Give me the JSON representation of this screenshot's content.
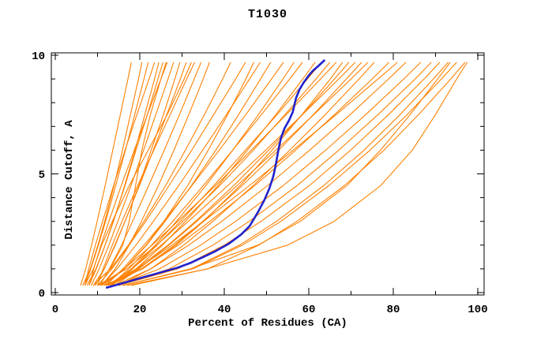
{
  "chart_data": {
    "type": "line",
    "title": "T1030",
    "xlabel": "Percent of Residues (CA)",
    "ylabel": "Distance Cutoff, A",
    "xlim": [
      0,
      100
    ],
    "ylim": [
      0,
      10
    ],
    "x_major_ticks": [
      0,
      20,
      40,
      60,
      80,
      100
    ],
    "x_minor_step": 10,
    "y_major_ticks": [
      0,
      5,
      10
    ],
    "y_minor_step": 1,
    "grid": false,
    "legend": "none",
    "frame": "full-box-inward-ticks",
    "colors": {
      "ensemble": "#FF8000",
      "highlight": "#2222CC",
      "frame": "#000000",
      "background": "#FFFFFF"
    },
    "highlight_series": {
      "name": "highlighted-model-curve",
      "points": [
        [
          12,
          0.2
        ],
        [
          14,
          0.3
        ],
        [
          17,
          0.45
        ],
        [
          20,
          0.6
        ],
        [
          23,
          0.75
        ],
        [
          26,
          0.9
        ],
        [
          29,
          1.05
        ],
        [
          32,
          1.25
        ],
        [
          35,
          1.5
        ],
        [
          38,
          1.75
        ],
        [
          41,
          2.05
        ],
        [
          44,
          2.45
        ],
        [
          46,
          2.8
        ],
        [
          48,
          3.4
        ],
        [
          49.5,
          3.9
        ],
        [
          50.7,
          4.4
        ],
        [
          51.6,
          4.9
        ],
        [
          52.2,
          5.4
        ],
        [
          52.8,
          6.0
        ],
        [
          53.4,
          6.5
        ],
        [
          54.2,
          6.9
        ],
        [
          55.3,
          7.25
        ],
        [
          56.2,
          7.6
        ],
        [
          57,
          8.2
        ],
        [
          57.8,
          8.55
        ],
        [
          58.8,
          8.85
        ],
        [
          60,
          9.15
        ],
        [
          61,
          9.35
        ],
        [
          62.3,
          9.55
        ],
        [
          63.8,
          9.8
        ]
      ]
    },
    "ensemble": {
      "name": "model-curves",
      "y_stops": [
        0.3,
        1,
        2,
        3,
        4.5,
        6,
        7.5,
        9,
        9.7
      ],
      "series": [
        {
          "x": [
            6,
            7.2,
            8.6,
            9.9,
            11.8,
            13.6,
            15.4,
            17.2,
            18
          ]
        },
        {
          "x": [
            6.5,
            8.3,
            10.1,
            11.7,
            13.9,
            15.9,
            17.8,
            19.7,
            20.5
          ]
        },
        {
          "x": [
            7,
            8.4,
            10.2,
            11.9,
            14.3,
            16.6,
            18.8,
            21,
            22
          ]
        },
        {
          "x": [
            7,
            7.9,
            9.5,
            11.2,
            13.8,
            16.5,
            19.3,
            22.2,
            23.5
          ]
        },
        {
          "x": [
            7.5,
            9.6,
            11.8,
            13.8,
            16.4,
            18.9,
            21.2,
            23.5,
            24.5
          ]
        },
        {
          "x": [
            8,
            9.7,
            11.8,
            13.7,
            16.5,
            19.1,
            21.8,
            24.3,
            25.5
          ]
        },
        {
          "x": [
            8,
            9.1,
            10.8,
            12.7,
            15.6,
            18.7,
            21.8,
            25,
            26.5
          ]
        },
        {
          "x": [
            9,
            13,
            16,
            17.5,
            19,
            20.5,
            22.5,
            25,
            26.2
          ]
        },
        {
          "x": [
            8.5,
            10.4,
            12.7,
            14.8,
            17.9,
            20.9,
            23.8,
            26.7,
            28
          ]
        },
        {
          "x": [
            9,
            11.6,
            14.2,
            16.5,
            19.8,
            22.7,
            25.6,
            28.3,
            29.5
          ]
        },
        {
          "x": [
            9.5,
            11.6,
            14.1,
            16.5,
            19.9,
            23.2,
            26.4,
            29.6,
            31
          ]
        },
        {
          "x": [
            7,
            9,
            11,
            13.5,
            17.5,
            22,
            26.5,
            30.5,
            32.2
          ]
        },
        {
          "x": [
            10,
            11.3,
            13.5,
            15.8,
            19.5,
            23.3,
            27.2,
            31.1,
            33
          ]
        },
        {
          "x": [
            10.5,
            12.8,
            15.7,
            18.3,
            22.1,
            25.8,
            29.4,
            32.9,
            34.5
          ]
        },
        {
          "x": [
            11,
            14.2,
            17.5,
            20.4,
            24.4,
            28.1,
            31.6,
            35,
            36.5
          ]
        },
        {
          "x": [
            9,
            13.1,
            17.3,
            21,
            26.1,
            30.8,
            35.3,
            39.6,
            41.5
          ]
        },
        {
          "x": [
            10,
            13.4,
            17.5,
            21.4,
            26.9,
            32.3,
            37.5,
            42.7,
            45
          ]
        },
        {
          "x": [
            10.5,
            16.4,
            21.5,
            25.7,
            31.3,
            36.2,
            40.8,
            45.1,
            47
          ]
        },
        {
          "x": [
            11,
            14.6,
            19.1,
            23.2,
            29.2,
            34.9,
            40.5,
            46,
            48.5
          ]
        },
        {
          "x": [
            11.5,
            16.4,
            21.6,
            26,
            32.2,
            38,
            43.4,
            48.6,
            51
          ]
        },
        {
          "x": [
            12,
            16,
            21,
            25.7,
            32.3,
            38.8,
            45.1,
            51.2,
            54
          ]
        },
        {
          "x": [
            12.5,
            18,
            23.7,
            28.7,
            35.6,
            42,
            48.1,
            53.9,
            56.5
          ]
        },
        {
          "x": [
            13,
            17.4,
            22.8,
            27.8,
            35,
            42,
            48.8,
            55.5,
            58.5
          ]
        },
        {
          "x": [
            13,
            19.1,
            25.4,
            30.8,
            38.5,
            45.5,
            52.2,
            58.6,
            61.5
          ]
        },
        {
          "x": [
            13.5,
            18.3,
            24.1,
            29.6,
            37.5,
            45,
            52.5,
            59.7,
            63
          ]
        },
        {
          "x": [
            10,
            16.9,
            24,
            30.2,
            38.9,
            46.9,
            54.4,
            61.7,
            65
          ]
        },
        {
          "x": [
            11,
            16.3,
            22.9,
            29,
            37.9,
            46.4,
            54.7,
            62.8,
            66.5
          ]
        },
        {
          "x": [
            11.5,
            20.7,
            28.6,
            35.1,
            43.7,
            51.3,
            58.4,
            65.1,
            68
          ]
        },
        {
          "x": [
            12,
            19.2,
            26.7,
            33.2,
            42.2,
            50.5,
            58.5,
            66.1,
            69.5
          ]
        },
        {
          "x": [
            12.5,
            18.1,
            25.1,
            31.5,
            40.8,
            49.8,
            58.5,
            67.1,
            71
          ]
        },
        {
          "x": [
            13,
            20.4,
            28.2,
            34.9,
            44.2,
            52.9,
            61.1,
            68.9,
            72.5
          ]
        },
        {
          "x": [
            14,
            19.8,
            26.9,
            33.5,
            43,
            52.2,
            61.2,
            70,
            74
          ]
        },
        {
          "x": [
            15,
            22.6,
            30.4,
            37.3,
            46.8,
            55.5,
            63.9,
            71.9,
            75.5
          ]
        },
        {
          "x": [
            12,
            20.4,
            29.1,
            36.6,
            47.2,
            56.9,
            66.1,
            75,
            79
          ]
        },
        {
          "x": [
            13,
            19.5,
            27.6,
            35.1,
            45.9,
            56.3,
            66.5,
            76.4,
            81
          ]
        },
        {
          "x": [
            14,
            22.6,
            31.6,
            39.4,
            50.2,
            60.2,
            69.8,
            78.9,
            83
          ]
        },
        {
          "x": [
            14.5,
            24.7,
            34.4,
            42.7,
            53.9,
            64,
            73.5,
            82.5,
            86.5
          ]
        },
        {
          "x": [
            15,
            27,
            37.3,
            45.9,
            57.2,
            67.1,
            76.4,
            85.2,
            89
          ]
        },
        {
          "x": [
            15,
            29,
            40,
            48.7,
            60.1,
            69.9,
            78.9,
            87.3,
            91
          ]
        },
        {
          "x": [
            16,
            32.2,
            43.6,
            52.4,
            63.5,
            73.1,
            81.6,
            89.5,
            93
          ]
        },
        {
          "x": [
            16,
            32.6,
            44.3,
            53.4,
            64.7,
            74.5,
            83.3,
            91.4,
            95
          ]
        },
        {
          "x": [
            17,
            36.1,
            48.2,
            57.2,
            68.4,
            77.8,
            86,
            93.6,
            97
          ]
        },
        {
          "x": [
            16,
            32,
            48,
            58,
            69,
            77,
            84,
            90.5,
            93.5
          ]
        },
        {
          "x": [
            18,
            36,
            55,
            66,
            77,
            84.5,
            90,
            95,
            97.5
          ]
        }
      ]
    }
  }
}
